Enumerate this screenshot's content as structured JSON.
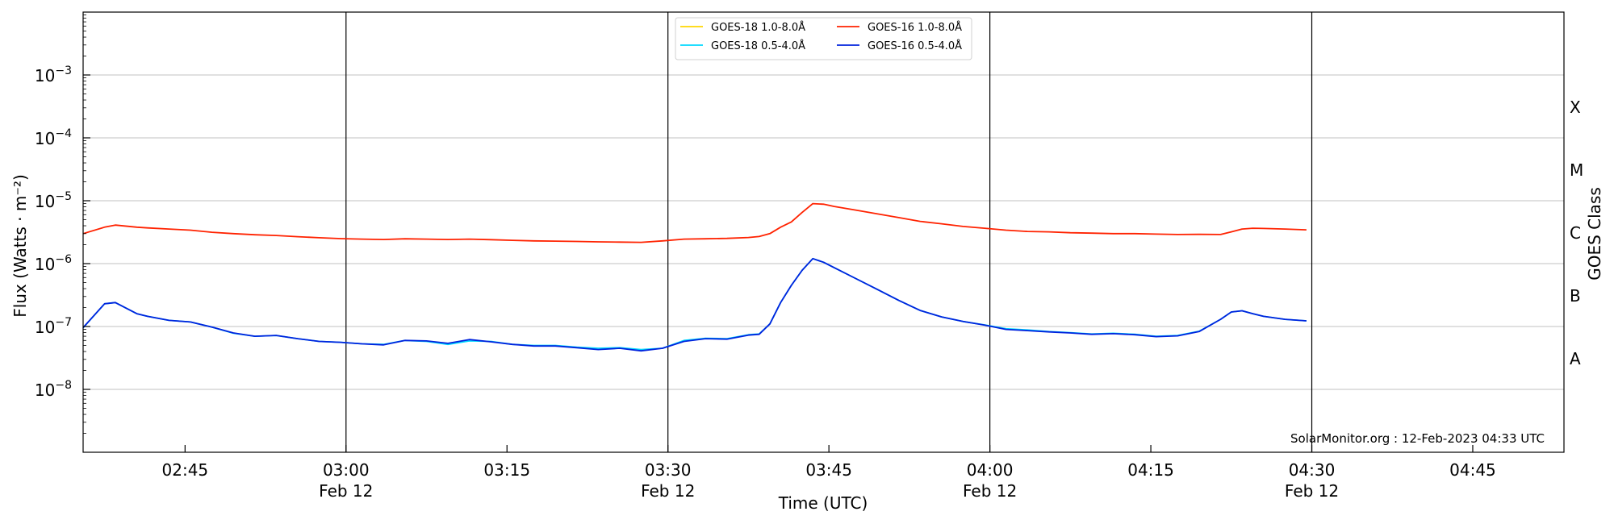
{
  "chart_data": {
    "type": "line",
    "title": "",
    "xlabel": "Time (UTC)",
    "ylabel": "Flux (Watts · m⁻²)",
    "right_ylabel": "GOES Class",
    "y_scale": "log",
    "ylim": [
      1e-09,
      0.01
    ],
    "xlim": [
      "2023-02-12T02:35:30Z",
      "2023-02-12T04:53:30Z"
    ],
    "x_ticks": [
      {
        "time": "02:45",
        "date": ""
      },
      {
        "time": "03:00",
        "date": "Feb 12"
      },
      {
        "time": "03:15",
        "date": ""
      },
      {
        "time": "03:30",
        "date": "Feb 12"
      },
      {
        "time": "03:45",
        "date": ""
      },
      {
        "time": "04:00",
        "date": "Feb 12"
      },
      {
        "time": "04:15",
        "date": ""
      },
      {
        "time": "04:30",
        "date": "Feb 12"
      },
      {
        "time": "04:45",
        "date": ""
      }
    ],
    "y_ticks": [
      {
        "base": "10",
        "exp": "−3",
        "value": 0.001
      },
      {
        "base": "10",
        "exp": "−4",
        "value": 0.0001
      },
      {
        "base": "10",
        "exp": "−5",
        "value": 1e-05
      },
      {
        "base": "10",
        "exp": "−6",
        "value": 1e-06
      },
      {
        "base": "10",
        "exp": "−7",
        "value": 1e-07
      },
      {
        "base": "10",
        "exp": "−8",
        "value": 1e-08
      }
    ],
    "goes_classes": [
      {
        "label": "X",
        "center": 0.000316
      },
      {
        "label": "M",
        "center": 3.16e-05
      },
      {
        "label": "C",
        "center": 3.16e-06
      },
      {
        "label": "B",
        "center": 3.16e-07
      },
      {
        "label": "A",
        "center": 3.16e-08
      }
    ],
    "grid": "horizontal",
    "vertical_lines": [
      "03:00",
      "03:30",
      "04:00",
      "04:30"
    ],
    "legend_position": "top-center",
    "credit": "SolarMonitor.org : 12-Feb-2023 04:33 UTC",
    "series": [
      {
        "name": "GOES-18 1.0-8.0Å",
        "color": "#ffd700",
        "x": [],
        "values": []
      },
      {
        "name": "GOES-18 0.5-4.0Å",
        "color": "#00d8ff",
        "x": [
          "02:35:30",
          "02:37:30",
          "02:38:30",
          "02:40:30",
          "02:41:30",
          "02:43:30",
          "02:45:30",
          "02:47:30",
          "02:49:30",
          "02:51:30",
          "02:53:30",
          "02:55:30",
          "02:57:30",
          "02:59:30",
          "03:01:30",
          "03:03:30",
          "03:05:30",
          "03:07:30",
          "03:09:30",
          "03:11:30",
          "03:13:30",
          "03:15:30",
          "03:17:30",
          "03:19:30",
          "03:21:30",
          "03:23:30",
          "03:25:30",
          "03:27:30",
          "03:29:30",
          "03:31:30",
          "03:33:30",
          "03:35:30",
          "03:37:30",
          "03:38:30",
          "03:39:30",
          "03:40:30",
          "03:41:30",
          "03:42:30",
          "03:43:30",
          "03:44:30",
          "03:45:30",
          "03:47:30",
          "03:49:30",
          "03:51:30",
          "03:53:30",
          "03:55:30",
          "03:57:30",
          "03:59:30",
          "04:01:30",
          "04:03:30",
          "04:05:30",
          "04:07:30",
          "04:09:30",
          "04:11:30",
          "04:13:30",
          "04:15:30",
          "04:17:30",
          "04:19:30",
          "04:21:30",
          "04:22:30",
          "04:23:30",
          "04:24:30",
          "04:25:30",
          "04:27:30",
          "04:29:30"
        ],
        "values": [
          9.5e-08,
          2.3e-07,
          2.4e-07,
          1.6e-07,
          1.45e-07,
          1.25e-07,
          1.18e-07,
          9.8e-08,
          7.8e-08,
          7e-08,
          7.2e-08,
          6.4e-08,
          5.8e-08,
          5.6e-08,
          5.3e-08,
          5.2e-08,
          6e-08,
          5.8e-08,
          5.2e-08,
          5.9e-08,
          5.8e-08,
          5.2e-08,
          5e-08,
          5e-08,
          4.7e-08,
          4.5e-08,
          4.6e-08,
          4.3e-08,
          4.5e-08,
          6e-08,
          6.5e-08,
          6.4e-08,
          7.4e-08,
          7.6e-08,
          1.1e-07,
          2.4e-07,
          4.5e-07,
          7.8e-07,
          1.2e-06,
          1.05e-06,
          8.6e-07,
          5.8e-07,
          3.9e-07,
          2.6e-07,
          1.8e-07,
          1.42e-07,
          1.2e-07,
          1.06e-07,
          9.2e-08,
          8.8e-08,
          8.3e-08,
          8e-08,
          7.6e-08,
          7.8e-08,
          7.5e-08,
          7e-08,
          7.2e-08,
          8.4e-08,
          1.3e-07,
          1.7e-07,
          1.78e-07,
          1.6e-07,
          1.45e-07,
          1.3e-07,
          1.23e-07
        ]
      },
      {
        "name": "GOES-16 1.0-8.0Å",
        "color": "#ff2200",
        "x": [
          "02:35:30",
          "02:37:30",
          "02:38:30",
          "02:40:30",
          "02:41:30",
          "02:43:30",
          "02:45:30",
          "02:47:30",
          "02:49:30",
          "02:51:30",
          "02:53:30",
          "02:55:30",
          "02:57:30",
          "02:59:30",
          "03:01:30",
          "03:03:30",
          "03:05:30",
          "03:07:30",
          "03:09:30",
          "03:11:30",
          "03:13:30",
          "03:15:30",
          "03:17:30",
          "03:19:30",
          "03:21:30",
          "03:23:30",
          "03:25:30",
          "03:27:30",
          "03:29:30",
          "03:31:30",
          "03:33:30",
          "03:35:30",
          "03:37:30",
          "03:38:30",
          "03:39:30",
          "03:40:30",
          "03:41:30",
          "03:42:30",
          "03:43:30",
          "03:44:30",
          "03:45:30",
          "03:47:30",
          "03:49:30",
          "03:51:30",
          "03:53:30",
          "03:55:30",
          "03:57:30",
          "03:59:30",
          "04:01:30",
          "04:03:30",
          "04:05:30",
          "04:07:30",
          "04:09:30",
          "04:11:30",
          "04:13:30",
          "04:15:30",
          "04:17:30",
          "04:19:30",
          "04:21:30",
          "04:22:30",
          "04:23:30",
          "04:24:30",
          "04:25:30",
          "04:27:30",
          "04:29:30"
        ],
        "values": [
          3e-06,
          3.8e-06,
          4.1e-06,
          3.8e-06,
          3.7e-06,
          3.55e-06,
          3.4e-06,
          3.15e-06,
          3e-06,
          2.88e-06,
          2.8e-06,
          2.68e-06,
          2.58e-06,
          2.5e-06,
          2.45e-06,
          2.42e-06,
          2.48e-06,
          2.45e-06,
          2.42e-06,
          2.45e-06,
          2.4e-06,
          2.35e-06,
          2.3e-06,
          2.28e-06,
          2.25e-06,
          2.22e-06,
          2.2e-06,
          2.18e-06,
          2.3e-06,
          2.45e-06,
          2.48e-06,
          2.52e-06,
          2.6e-06,
          2.7e-06,
          3e-06,
          3.8e-06,
          4.6e-06,
          6.5e-06,
          9e-06,
          8.8e-06,
          8.1e-06,
          7.1e-06,
          6.2e-06,
          5.4e-06,
          4.7e-06,
          4.3e-06,
          3.9e-06,
          3.65e-06,
          3.4e-06,
          3.25e-06,
          3.2e-06,
          3.1e-06,
          3.05e-06,
          3e-06,
          3e-06,
          2.95e-06,
          2.9e-06,
          2.92e-06,
          2.9e-06,
          3.2e-06,
          3.55e-06,
          3.65e-06,
          3.62e-06,
          3.55e-06,
          3.45e-06
        ]
      },
      {
        "name": "GOES-16 0.5-4.0Å",
        "color": "#0022dd",
        "x": [
          "02:35:30",
          "02:37:30",
          "02:38:30",
          "02:40:30",
          "02:41:30",
          "02:43:30",
          "02:45:30",
          "02:47:30",
          "02:49:30",
          "02:51:30",
          "02:53:30",
          "02:55:30",
          "02:57:30",
          "02:59:30",
          "03:01:30",
          "03:03:30",
          "03:05:30",
          "03:07:30",
          "03:09:30",
          "03:11:30",
          "03:13:30",
          "03:15:30",
          "03:17:30",
          "03:19:30",
          "03:21:30",
          "03:23:30",
          "03:25:30",
          "03:27:30",
          "03:29:30",
          "03:31:30",
          "03:33:30",
          "03:35:30",
          "03:37:30",
          "03:38:30",
          "03:39:30",
          "03:40:30",
          "03:41:30",
          "03:42:30",
          "03:43:30",
          "03:44:30",
          "03:45:30",
          "03:47:30",
          "03:49:30",
          "03:51:30",
          "03:53:30",
          "03:55:30",
          "03:57:30",
          "03:59:30",
          "04:01:30",
          "04:03:30",
          "04:05:30",
          "04:07:30",
          "04:09:30",
          "04:11:30",
          "04:13:30",
          "04:15:30",
          "04:17:30",
          "04:19:30",
          "04:21:30",
          "04:22:30",
          "04:23:30",
          "04:24:30",
          "04:25:30",
          "04:27:30",
          "04:29:30"
        ],
        "values": [
          9.6e-08,
          2.3e-07,
          2.4e-07,
          1.6e-07,
          1.45e-07,
          1.25e-07,
          1.18e-07,
          9.8e-08,
          7.9e-08,
          7e-08,
          7.2e-08,
          6.4e-08,
          5.8e-08,
          5.6e-08,
          5.3e-08,
          5.1e-08,
          6e-08,
          5.9e-08,
          5.4e-08,
          6.2e-08,
          5.7e-08,
          5.2e-08,
          4.9e-08,
          4.9e-08,
          4.6e-08,
          4.3e-08,
          4.5e-08,
          4.1e-08,
          4.5e-08,
          5.8e-08,
          6.4e-08,
          6.3e-08,
          7.3e-08,
          7.5e-08,
          1.1e-07,
          2.4e-07,
          4.5e-07,
          7.8e-07,
          1.2e-06,
          1.05e-06,
          8.6e-07,
          5.8e-07,
          3.9e-07,
          2.6e-07,
          1.8e-07,
          1.42e-07,
          1.2e-07,
          1.05e-07,
          9e-08,
          8.6e-08,
          8.2e-08,
          7.9e-08,
          7.5e-08,
          7.7e-08,
          7.4e-08,
          6.9e-08,
          7.1e-08,
          8.3e-08,
          1.3e-07,
          1.7e-07,
          1.78e-07,
          1.6e-07,
          1.45e-07,
          1.3e-07,
          1.23e-07
        ]
      }
    ]
  }
}
